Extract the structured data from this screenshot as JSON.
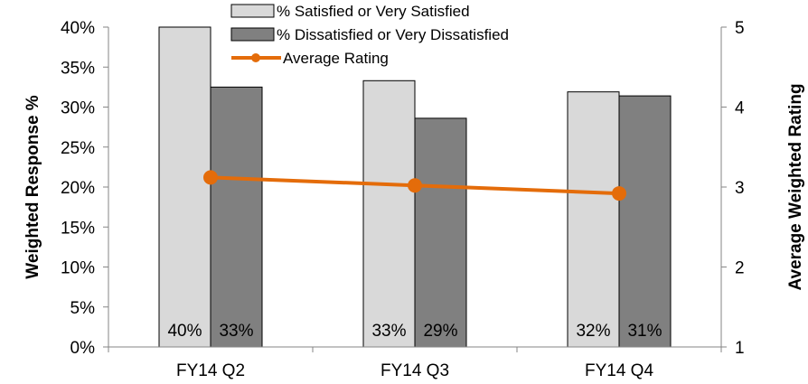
{
  "chart_data": {
    "type": "bar",
    "categories": [
      "FY14 Q2",
      "FY14 Q3",
      "FY14 Q4"
    ],
    "series": [
      {
        "name": "% Satisfied or Very Satisfied",
        "axis": "left",
        "kind": "bar",
        "color": "#d9d9d9",
        "values": [
          40,
          33.3,
          31.9
        ],
        "labels": [
          "40%",
          "33%",
          "32%"
        ]
      },
      {
        "name": "% Dissatisfied or Very Dissatisfied",
        "axis": "left",
        "kind": "bar",
        "color": "#808080",
        "values": [
          32.5,
          28.6,
          31.4
        ],
        "labels": [
          "33%",
          "29%",
          "31%"
        ]
      },
      {
        "name": "Average Rating",
        "axis": "right",
        "kind": "line",
        "color": "#e46c0a",
        "values": [
          3.12,
          3.02,
          2.92
        ]
      }
    ],
    "ylabel": "Weighted Response %",
    "y2label": "Average Weighted Rating",
    "ylim": [
      0,
      40
    ],
    "y2lim": [
      1,
      5
    ],
    "yticks": [
      "0%",
      "5%",
      "10%",
      "15%",
      "20%",
      "25%",
      "30%",
      "35%",
      "40%"
    ],
    "y2ticks": [
      "1",
      "2",
      "3",
      "4",
      "5"
    ],
    "grid": false,
    "legend_position": "top"
  }
}
